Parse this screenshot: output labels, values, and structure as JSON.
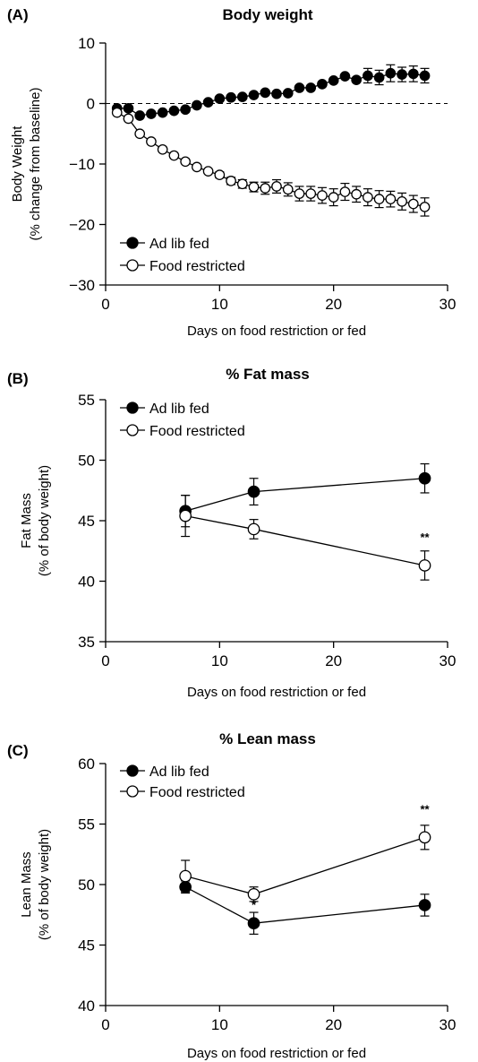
{
  "chart_data": [
    {
      "panel": "(A)",
      "type": "line",
      "title": "Body weight",
      "xlabel": "Days on food restriction or fed",
      "ylabel": [
        "Body Weight",
        "(% change from baseline)"
      ],
      "xlim": [
        0,
        30
      ],
      "ylim": [
        -30,
        10
      ],
      "xticks": [
        0,
        10,
        20,
        30
      ],
      "yticks": [
        -30,
        -20,
        -10,
        0,
        10
      ],
      "ytick_labels": [
        "−30",
        "−20",
        "−10",
        "0",
        "10"
      ],
      "reference_line_y": 0,
      "legend": [
        "Ad lib fed",
        "Food restricted"
      ],
      "legend_position": "bottom-left",
      "series": [
        {
          "name": "Ad lib fed",
          "marker": "filled-circle",
          "x": [
            1,
            2,
            3,
            4,
            5,
            6,
            7,
            8,
            9,
            10,
            11,
            12,
            13,
            14,
            15,
            16,
            17,
            18,
            19,
            20,
            21,
            22,
            23,
            24,
            25,
            26,
            27,
            28
          ],
          "y": [
            -0.8,
            -0.8,
            -2.0,
            -1.7,
            -1.5,
            -1.2,
            -1.0,
            -0.3,
            0.2,
            0.8,
            1.0,
            1.1,
            1.4,
            1.8,
            1.6,
            1.7,
            2.6,
            2.6,
            3.2,
            3.8,
            4.5,
            3.9,
            4.6,
            4.3,
            5.0,
            4.8,
            4.9,
            4.6
          ],
          "err": [
            0,
            0,
            0,
            0,
            0,
            0,
            0,
            0,
            0,
            0,
            0,
            0,
            0,
            0,
            0,
            0,
            0,
            0,
            0,
            0,
            0,
            0,
            1.2,
            1.2,
            1.4,
            1.2,
            1.3,
            1.2
          ]
        },
        {
          "name": "Food restricted",
          "marker": "open-circle",
          "x": [
            1,
            2,
            3,
            4,
            5,
            6,
            7,
            8,
            9,
            10,
            11,
            12,
            13,
            14,
            15,
            16,
            17,
            18,
            19,
            20,
            21,
            22,
            23,
            24,
            25,
            26,
            27,
            28
          ],
          "y": [
            -1.5,
            -2.5,
            -5.0,
            -6.3,
            -7.6,
            -8.6,
            -9.6,
            -10.5,
            -11.2,
            -11.8,
            -12.8,
            -13.3,
            -13.8,
            -14.0,
            -13.7,
            -14.2,
            -14.9,
            -14.9,
            -15.2,
            -15.5,
            -14.6,
            -15.0,
            -15.5,
            -15.8,
            -15.8,
            -16.2,
            -16.6,
            -17.1
          ],
          "err": [
            0,
            0,
            0,
            0,
            0,
            0,
            0,
            0,
            0,
            0.5,
            0.6,
            0.7,
            0.8,
            1.0,
            1.1,
            1.1,
            1.2,
            1.2,
            1.3,
            1.4,
            1.4,
            1.3,
            1.4,
            1.4,
            1.3,
            1.4,
            1.4,
            1.5
          ]
        }
      ]
    },
    {
      "panel": "(B)",
      "type": "line",
      "title": "% Fat mass",
      "xlabel": "Days on food restriction or fed",
      "ylabel": [
        "Fat Mass",
        "(% of body weight)"
      ],
      "xlim": [
        0,
        30
      ],
      "ylim": [
        35,
        55
      ],
      "xticks": [
        0,
        10,
        20,
        30
      ],
      "yticks": [
        35,
        40,
        45,
        50,
        55
      ],
      "ytick_labels": [
        "35",
        "40",
        "45",
        "50",
        "55"
      ],
      "legend": [
        "Ad lib fed",
        "Food restricted"
      ],
      "legend_position": "top-left",
      "series": [
        {
          "name": "Ad lib fed",
          "marker": "filled-circle",
          "x": [
            7,
            13,
            28
          ],
          "y": [
            45.8,
            47.4,
            48.5
          ],
          "err": [
            1.3,
            1.1,
            1.2
          ]
        },
        {
          "name": "Food restricted",
          "marker": "open-circle",
          "x": [
            7,
            13,
            28
          ],
          "y": [
            45.4,
            44.3,
            41.3
          ],
          "err": [
            1.7,
            0.8,
            1.2
          ]
        }
      ],
      "annotations": [
        {
          "text": "**",
          "x": 28,
          "y": 43.3
        }
      ]
    },
    {
      "panel": "(C)",
      "type": "line",
      "title": "% Lean mass",
      "xlabel": "Days on food restriction or fed",
      "ylabel": [
        "Lean Mass",
        "(% of body weight)"
      ],
      "xlim": [
        0,
        30
      ],
      "ylim": [
        40,
        60
      ],
      "xticks": [
        0,
        10,
        20,
        30
      ],
      "yticks": [
        40,
        45,
        50,
        55,
        60
      ],
      "ytick_labels": [
        "40",
        "45",
        "50",
        "55",
        "60"
      ],
      "legend": [
        "Ad lib fed",
        "Food restricted"
      ],
      "legend_position": "top-left",
      "series": [
        {
          "name": "Ad lib fed",
          "marker": "filled-circle",
          "x": [
            7,
            13,
            28
          ],
          "y": [
            49.8,
            46.8,
            48.3
          ],
          "err": [
            0.5,
            0.9,
            0.9
          ]
        },
        {
          "name": "Food restricted",
          "marker": "open-circle",
          "x": [
            7,
            13,
            28
          ],
          "y": [
            50.7,
            49.2,
            53.9
          ],
          "err": [
            1.3,
            0.6,
            1.0
          ]
        }
      ],
      "annotations": [
        {
          "text": "*",
          "x": 13,
          "y": 48.0
        },
        {
          "text": "**",
          "x": 28,
          "y": 55.9
        }
      ]
    }
  ]
}
